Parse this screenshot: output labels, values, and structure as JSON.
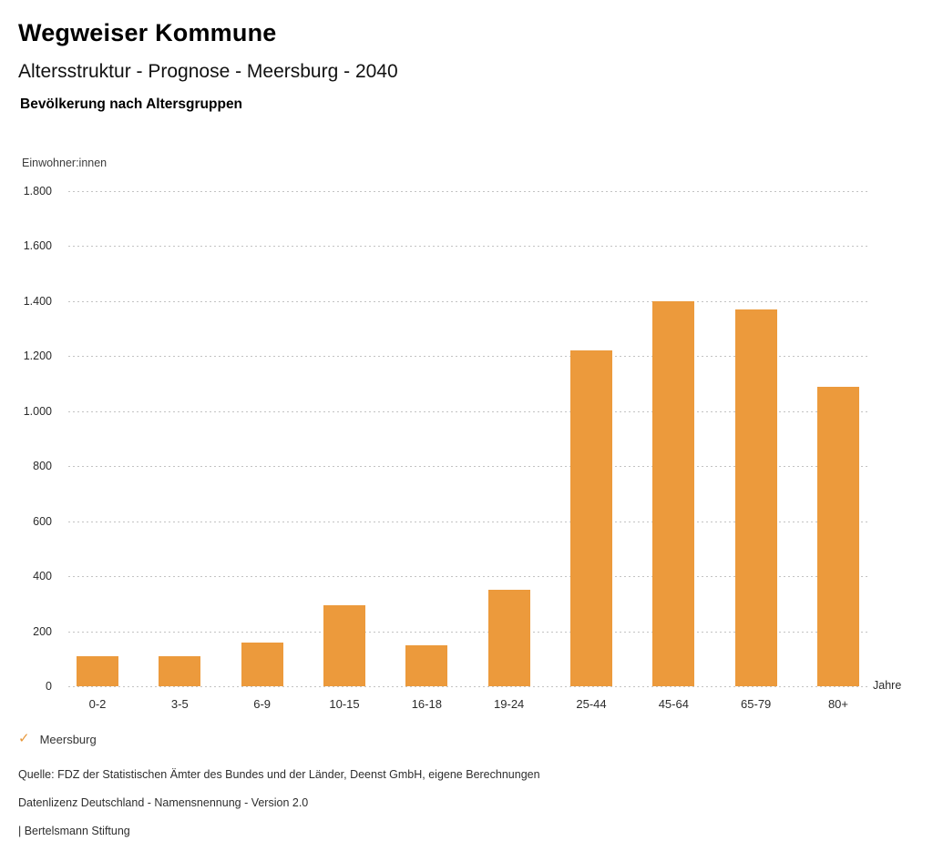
{
  "header": {
    "title": "Wegweiser Kommune",
    "subtitle": "Altersstruktur - Prognose - Meersburg - 2040",
    "chart_title": "Bevölkerung nach Altersgruppen"
  },
  "chart_data": {
    "type": "bar",
    "title": "Bevölkerung nach Altersgruppen",
    "categories": [
      "0-2",
      "3-5",
      "6-9",
      "10-15",
      "16-18",
      "19-24",
      "25-44",
      "45-64",
      "65-79",
      "80+"
    ],
    "values": [
      110,
      110,
      160,
      295,
      150,
      350,
      1220,
      1400,
      1370,
      1090
    ],
    "series_name": "Meersburg",
    "xlabel": "Jahre",
    "ylabel": "Einwohner:innen",
    "ylim": [
      0,
      1800
    ],
    "ytick_step": 200,
    "ytick_labels": [
      "0",
      "200",
      "400",
      "600",
      "800",
      "1.000",
      "1.200",
      "1.400",
      "1.600",
      "1.800"
    ],
    "grid": "horizontal-dotted",
    "legend_position": "bottom-left",
    "bar_color": "#EC9A3C"
  },
  "legend": {
    "check_icon": "✓",
    "check_color": "#E8983B",
    "label": "Meersburg"
  },
  "footer": {
    "source": "Quelle: FDZ der Statistischen Ämter des Bundes und der Länder, Deenst GmbH, eigene Berechnungen",
    "license": "Datenlizenz Deutschland - Namensnennung - Version 2.0",
    "attribution": "| Bertelsmann Stiftung"
  }
}
